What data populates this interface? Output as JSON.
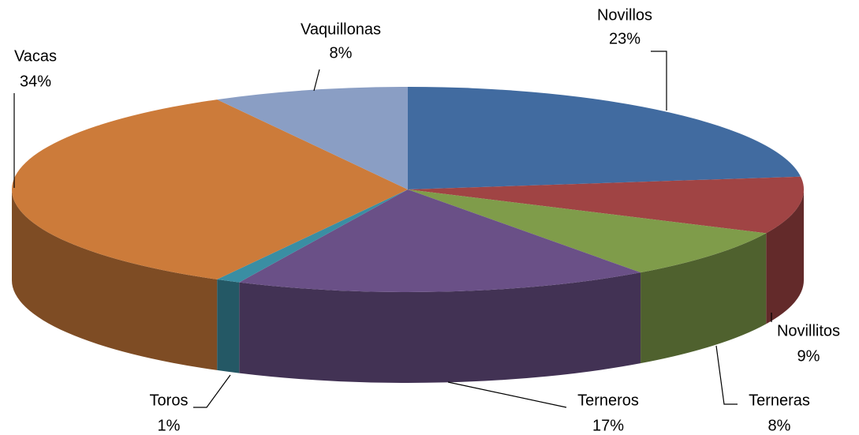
{
  "chart_data": {
    "type": "pie3d",
    "categories": [
      "Novillos",
      "Novillitos",
      "Terneras",
      "Terneros",
      "Toros",
      "Vacas",
      "Vaquillonas"
    ],
    "values": [
      23,
      9,
      8,
      17,
      1,
      34,
      8
    ],
    "value_labels": [
      "23%",
      "9%",
      "8%",
      "17%",
      "1%",
      "34%",
      "8%"
    ],
    "colors": [
      "#416ba0",
      "#a04444",
      "#7f9c4a",
      "#6a5087",
      "#3a8ea3",
      "#cc7b3a",
      "#8a9ec4"
    ]
  }
}
